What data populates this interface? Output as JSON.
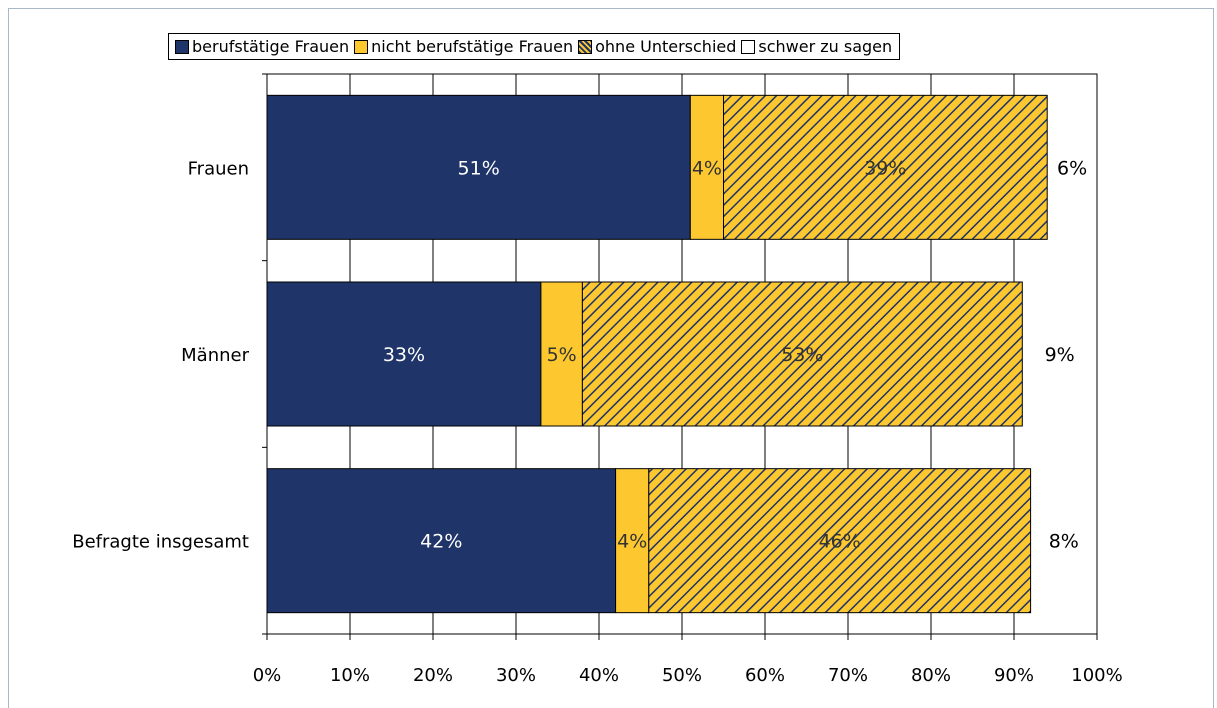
{
  "chart_data": {
    "type": "bar",
    "orientation": "horizontal",
    "stacked": true,
    "percent_stacked": true,
    "categories": [
      "Frauen",
      "Männer",
      "Befragte insgesamt"
    ],
    "series": [
      {
        "name": "berufstätige Frauen",
        "values": [
          51,
          33,
          42
        ],
        "labels": [
          "51%",
          "33%",
          "42%"
        ],
        "color": "#1f3468",
        "label_color": "#ffffff",
        "pattern": "solid"
      },
      {
        "name": "nicht berufstätige Frauen",
        "values": [
          4,
          5,
          4
        ],
        "labels": [
          "4%",
          "5%",
          "4%"
        ],
        "color": "#fdc82f",
        "label_color": "#333333",
        "pattern": "solid"
      },
      {
        "name": "ohne Unterschied",
        "values": [
          39,
          53,
          46
        ],
        "labels": [
          "39%",
          "53%",
          "46%"
        ],
        "color": "#fdc82f",
        "hatch_color": "#1f3468",
        "label_color": "#333333",
        "pattern": "diagonal-hatch"
      },
      {
        "name": "schwer zu sagen",
        "values": [
          6,
          9,
          8
        ],
        "labels": [
          "6%",
          "9%",
          "8%"
        ],
        "color": "#ffffff",
        "label_color": "#000000",
        "pattern": "solid"
      }
    ],
    "x_ticks": [
      "0%",
      "10%",
      "20%",
      "30%",
      "40%",
      "50%",
      "60%",
      "70%",
      "80%",
      "90%",
      "100%"
    ],
    "xlim": [
      0,
      100
    ],
    "grid": true,
    "legend_position": "top"
  }
}
